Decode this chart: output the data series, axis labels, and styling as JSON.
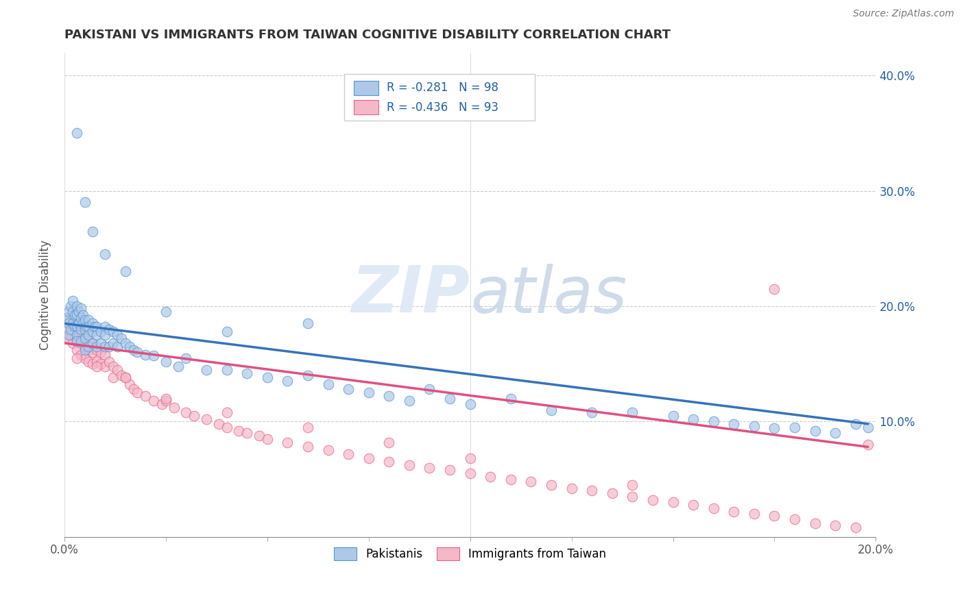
{
  "title": "PAKISTANI VS IMMIGRANTS FROM TAIWAN COGNITIVE DISABILITY CORRELATION CHART",
  "source": "Source: ZipAtlas.com",
  "ylabel_label": "Cognitive Disability",
  "x_min": 0.0,
  "x_max": 0.2,
  "y_min": 0.0,
  "y_max": 0.42,
  "color_blue_fill": "#aec8e8",
  "color_blue_edge": "#4e96d4",
  "color_blue_line": "#3573b9",
  "color_pink_fill": "#f4b8c8",
  "color_pink_edge": "#e8608a",
  "color_pink_line": "#e05080",
  "color_blue_text": "#2060a8",
  "watermark_color": "#d8e4f0",
  "legend_r1": "-0.281",
  "legend_n1": "98",
  "legend_r2": "-0.436",
  "legend_n2": "93",
  "blue_regression_x0": 0.0,
  "blue_regression_y0": 0.185,
  "blue_regression_x1": 0.198,
  "blue_regression_y1": 0.098,
  "pink_regression_x0": 0.0,
  "pink_regression_y0": 0.168,
  "pink_regression_x1": 0.198,
  "pink_regression_y1": 0.078,
  "pakistanis_x": [
    0.0005,
    0.001,
    0.001,
    0.001,
    0.0015,
    0.0015,
    0.002,
    0.002,
    0.002,
    0.0025,
    0.0025,
    0.003,
    0.003,
    0.003,
    0.003,
    0.003,
    0.0035,
    0.0035,
    0.004,
    0.004,
    0.004,
    0.004,
    0.0045,
    0.0045,
    0.005,
    0.005,
    0.005,
    0.005,
    0.0055,
    0.006,
    0.006,
    0.006,
    0.006,
    0.007,
    0.007,
    0.007,
    0.0075,
    0.008,
    0.008,
    0.008,
    0.009,
    0.009,
    0.01,
    0.01,
    0.01,
    0.011,
    0.011,
    0.012,
    0.012,
    0.013,
    0.013,
    0.014,
    0.015,
    0.016,
    0.017,
    0.018,
    0.02,
    0.022,
    0.025,
    0.028,
    0.03,
    0.035,
    0.04,
    0.045,
    0.05,
    0.055,
    0.06,
    0.065,
    0.07,
    0.075,
    0.08,
    0.085,
    0.09,
    0.095,
    0.1,
    0.11,
    0.12,
    0.13,
    0.14,
    0.15,
    0.155,
    0.16,
    0.165,
    0.17,
    0.175,
    0.18,
    0.185,
    0.19,
    0.195,
    0.198,
    0.003,
    0.005,
    0.007,
    0.01,
    0.015,
    0.025,
    0.04,
    0.06
  ],
  "pakistanis_y": [
    0.19,
    0.195,
    0.185,
    0.175,
    0.2,
    0.18,
    0.195,
    0.185,
    0.205,
    0.192,
    0.183,
    0.2,
    0.193,
    0.183,
    0.175,
    0.17,
    0.195,
    0.185,
    0.198,
    0.19,
    0.18,
    0.17,
    0.192,
    0.185,
    0.188,
    0.18,
    0.172,
    0.162,
    0.182,
    0.188,
    0.182,
    0.175,
    0.165,
    0.185,
    0.178,
    0.168,
    0.182,
    0.182,
    0.175,
    0.165,
    0.178,
    0.168,
    0.182,
    0.175,
    0.165,
    0.18,
    0.165,
    0.178,
    0.168,
    0.175,
    0.165,
    0.172,
    0.168,
    0.165,
    0.162,
    0.16,
    0.158,
    0.157,
    0.152,
    0.148,
    0.155,
    0.145,
    0.145,
    0.142,
    0.138,
    0.135,
    0.14,
    0.132,
    0.128,
    0.125,
    0.122,
    0.118,
    0.128,
    0.12,
    0.115,
    0.12,
    0.11,
    0.108,
    0.108,
    0.105,
    0.102,
    0.1,
    0.098,
    0.096,
    0.094,
    0.095,
    0.092,
    0.09,
    0.098,
    0.095,
    0.35,
    0.29,
    0.265,
    0.245,
    0.23,
    0.195,
    0.178,
    0.185
  ],
  "taiwan_x": [
    0.0005,
    0.001,
    0.001,
    0.0015,
    0.002,
    0.002,
    0.0025,
    0.003,
    0.003,
    0.003,
    0.0035,
    0.004,
    0.004,
    0.004,
    0.0045,
    0.005,
    0.005,
    0.005,
    0.006,
    0.006,
    0.006,
    0.007,
    0.007,
    0.007,
    0.008,
    0.008,
    0.009,
    0.009,
    0.01,
    0.01,
    0.011,
    0.012,
    0.012,
    0.013,
    0.014,
    0.015,
    0.016,
    0.017,
    0.018,
    0.02,
    0.022,
    0.024,
    0.025,
    0.027,
    0.03,
    0.032,
    0.035,
    0.038,
    0.04,
    0.043,
    0.045,
    0.048,
    0.05,
    0.055,
    0.06,
    0.065,
    0.07,
    0.075,
    0.08,
    0.085,
    0.09,
    0.095,
    0.1,
    0.105,
    0.11,
    0.115,
    0.12,
    0.125,
    0.13,
    0.135,
    0.14,
    0.145,
    0.15,
    0.155,
    0.16,
    0.165,
    0.17,
    0.175,
    0.18,
    0.185,
    0.19,
    0.195,
    0.198,
    0.003,
    0.008,
    0.015,
    0.025,
    0.04,
    0.06,
    0.08,
    0.1,
    0.14,
    0.175
  ],
  "taiwan_y": [
    0.18,
    0.188,
    0.172,
    0.175,
    0.185,
    0.168,
    0.178,
    0.182,
    0.172,
    0.162,
    0.175,
    0.178,
    0.168,
    0.158,
    0.172,
    0.175,
    0.165,
    0.155,
    0.17,
    0.162,
    0.152,
    0.168,
    0.16,
    0.15,
    0.162,
    0.152,
    0.16,
    0.15,
    0.158,
    0.148,
    0.152,
    0.148,
    0.138,
    0.145,
    0.14,
    0.138,
    0.132,
    0.128,
    0.125,
    0.122,
    0.118,
    0.115,
    0.118,
    0.112,
    0.108,
    0.105,
    0.102,
    0.098,
    0.095,
    0.092,
    0.09,
    0.088,
    0.085,
    0.082,
    0.078,
    0.075,
    0.072,
    0.068,
    0.065,
    0.062,
    0.06,
    0.058,
    0.055,
    0.052,
    0.05,
    0.048,
    0.045,
    0.042,
    0.04,
    0.038,
    0.035,
    0.032,
    0.03,
    0.028,
    0.025,
    0.022,
    0.02,
    0.018,
    0.015,
    0.012,
    0.01,
    0.008,
    0.08,
    0.155,
    0.148,
    0.138,
    0.12,
    0.108,
    0.095,
    0.082,
    0.068,
    0.045,
    0.215
  ]
}
